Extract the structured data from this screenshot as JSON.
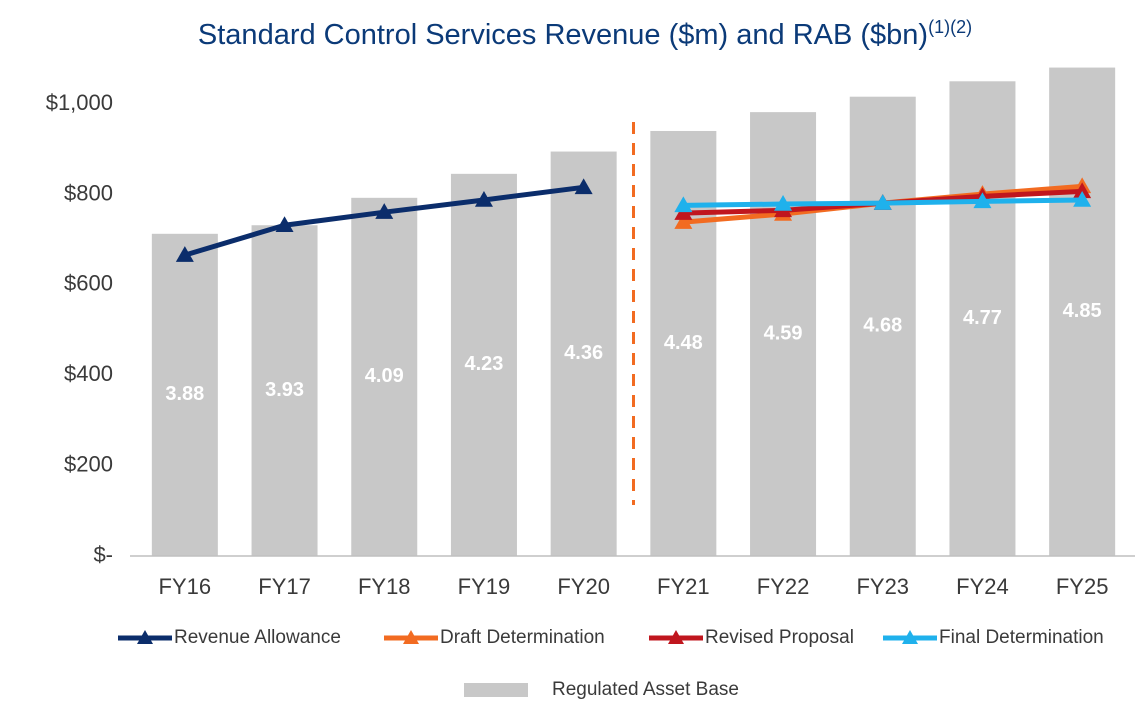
{
  "chart_data": {
    "type": "combo",
    "title": "Standard Control Services Revenue ($m) and RAB ($bn)",
    "title_superscript": "(1)(2)",
    "categories": [
      "FY16",
      "FY17",
      "FY18",
      "FY19",
      "FY20",
      "FY21",
      "FY22",
      "FY23",
      "FY24",
      "FY25"
    ],
    "ylim": [
      0,
      1100
    ],
    "yticks": [
      {
        "value": 0,
        "label": "$-"
      },
      {
        "value": 200,
        "label": "$200"
      },
      {
        "value": 400,
        "label": "$400"
      },
      {
        "value": 600,
        "label": "$600"
      },
      {
        "value": 800,
        "label": "$800"
      },
      {
        "value": 1000,
        "label": "$1,000"
      }
    ],
    "y2lim": [
      2.0,
      4.9
    ],
    "series": [
      {
        "name": "Revenue Allowance",
        "type": "line",
        "color": "#0b2d6b",
        "values": [
          666,
          732,
          761,
          788,
          816,
          null,
          null,
          null,
          null,
          null
        ]
      },
      {
        "name": "Draft Determination",
        "type": "line",
        "color": "#f26b21",
        "values": [
          null,
          null,
          null,
          null,
          null,
          739,
          757,
          781,
          801,
          818
        ]
      },
      {
        "name": "Revised Proposal",
        "type": "line",
        "color": "#c0161e",
        "values": [
          null,
          null,
          null,
          null,
          null,
          759,
          765,
          781,
          796,
          807
        ]
      },
      {
        "name": "Final Determination",
        "type": "line",
        "color": "#1fb1ec",
        "values": [
          null,
          null,
          null,
          null,
          null,
          776,
          779,
          781,
          785,
          788
        ]
      },
      {
        "name": "Regulated Asset Base",
        "type": "bar",
        "axis": "y2",
        "color": "#c8c8c8",
        "values": [
          3.88,
          3.93,
          4.09,
          4.23,
          4.36,
          4.48,
          4.59,
          4.68,
          4.77,
          4.85
        ]
      }
    ]
  }
}
